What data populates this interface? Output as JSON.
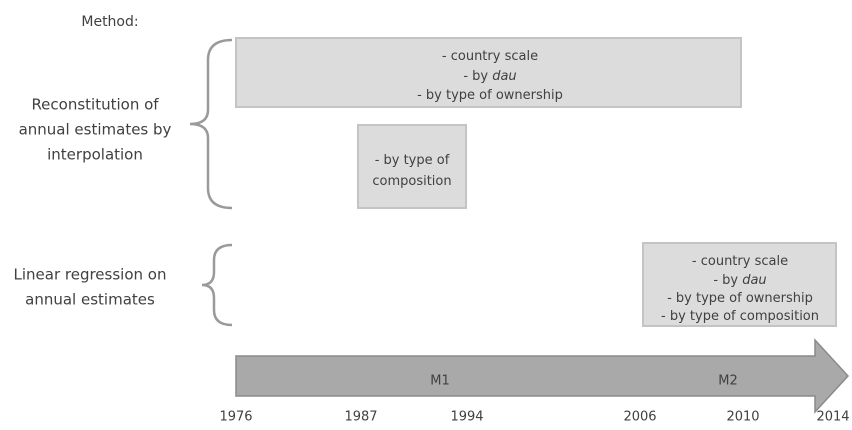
{
  "header": {
    "title": "Method:"
  },
  "methods": [
    {
      "label": [
        "Reconstitution of",
        "annual estimates by",
        "interpolation"
      ],
      "boxes": [
        {
          "lines": [
            {
              "text": "-   country scale"
            },
            {
              "text": "-   by ",
              "em": "dau"
            },
            {
              "text": "-   by type of ownership"
            }
          ]
        },
        {
          "lines": [
            {
              "text": "- by type of"
            },
            {
              "text": "composition"
            }
          ]
        }
      ]
    },
    {
      "label": [
        "Linear regression on",
        "annual estimates"
      ],
      "boxes": [
        {
          "lines": [
            {
              "text": "-   country scale"
            },
            {
              "text": "-   by ",
              "em": "dau"
            },
            {
              "text": "-   by type of ownership"
            },
            {
              "text": "-   by type of composition"
            }
          ]
        }
      ]
    }
  ],
  "timeline": {
    "periods": [
      "M1",
      "M2"
    ],
    "years": [
      "1976",
      "1987",
      "1994",
      "2006",
      "2010",
      "2014"
    ]
  }
}
